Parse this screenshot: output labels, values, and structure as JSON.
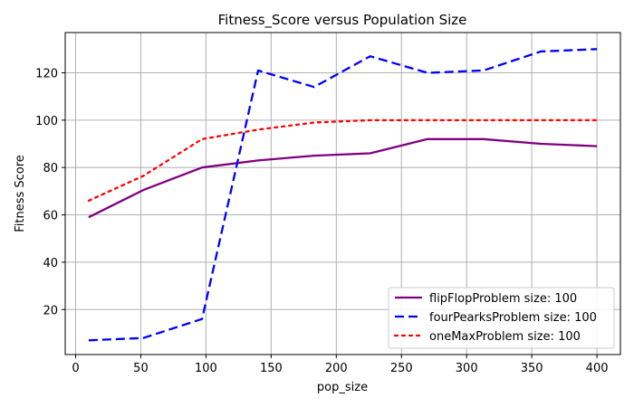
{
  "chart_data": {
    "type": "line",
    "title": "Fitness_Score versus Population Size",
    "xlabel": "pop_size",
    "ylabel": "Fitness Score",
    "xlim": [
      -8,
      418
    ],
    "ylim": [
      1,
      137
    ],
    "xticks": [
      0,
      50,
      100,
      150,
      200,
      250,
      300,
      350,
      400
    ],
    "yticks": [
      20,
      40,
      60,
      80,
      100,
      120
    ],
    "grid": true,
    "legend_position": "lower-right",
    "series": [
      {
        "name": "flipFlopProblem size: 100",
        "color": "#800080",
        "line_style": "solid",
        "x": [
          10,
          52,
          97,
          140,
          183,
          226,
          270,
          313,
          357,
          400
        ],
        "y": [
          59,
          70.5,
          80,
          83,
          85,
          86,
          92,
          92,
          90,
          89
        ]
      },
      {
        "name": "fourPearksProblem size: 100",
        "color": "#0000ff",
        "line_style": "dashed",
        "x": [
          10,
          52,
          97,
          140,
          183,
          226,
          270,
          313,
          357,
          400
        ],
        "y": [
          7,
          8,
          16,
          121,
          114,
          127,
          120,
          121,
          129,
          130
        ]
      },
      {
        "name": "oneMaxProblem size: 100",
        "color": "#ff0000",
        "line_style": "dotted",
        "x": [
          10,
          52,
          97,
          140,
          183,
          226,
          270,
          313,
          357,
          400
        ],
        "y": [
          66,
          76.5,
          92,
          96,
          99,
          100,
          100,
          100,
          100,
          100
        ]
      }
    ]
  }
}
